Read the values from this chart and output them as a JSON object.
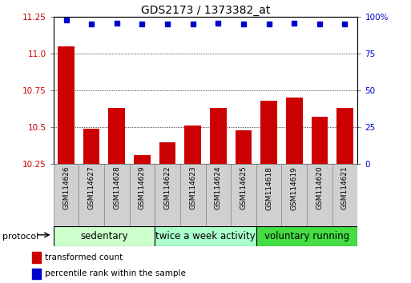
{
  "title": "GDS2173 / 1373382_at",
  "categories": [
    "GSM114626",
    "GSM114627",
    "GSM114628",
    "GSM114629",
    "GSM114622",
    "GSM114623",
    "GSM114624",
    "GSM114625",
    "GSM114618",
    "GSM114619",
    "GSM114620",
    "GSM114621"
  ],
  "bar_values": [
    11.05,
    10.49,
    10.63,
    10.31,
    10.4,
    10.51,
    10.63,
    10.48,
    10.68,
    10.7,
    10.57,
    10.63
  ],
  "dot_values": [
    98,
    95,
    96,
    95,
    95,
    95,
    96,
    95,
    95,
    96,
    95,
    95
  ],
  "ylim_left": [
    10.25,
    11.25
  ],
  "ylim_right": [
    0,
    100
  ],
  "yticks_left": [
    10.25,
    10.5,
    10.75,
    11.0,
    11.25
  ],
  "yticks_right": [
    0,
    25,
    50,
    75,
    100
  ],
  "bar_color": "#cc0000",
  "dot_color": "#0000cc",
  "groups": [
    {
      "label": "sedentary",
      "start": 0,
      "end": 4,
      "color": "#ccffcc"
    },
    {
      "label": "twice a week activity",
      "start": 4,
      "end": 8,
      "color": "#aaffcc"
    },
    {
      "label": "voluntary running",
      "start": 8,
      "end": 12,
      "color": "#44dd44"
    }
  ],
  "protocol_label": "protocol",
  "legend_bar_label": "transformed count",
  "legend_dot_label": "percentile rank within the sample",
  "title_fontsize": 10,
  "tick_fontsize": 7.5,
  "group_label_fontsize": 8.5,
  "cat_fontsize": 6.5
}
